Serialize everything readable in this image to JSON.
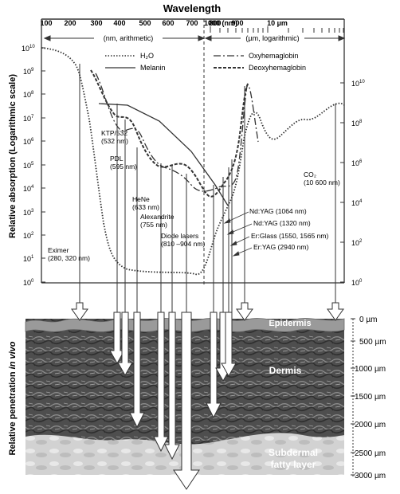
{
  "top_axis": {
    "title": "Wavelength",
    "ticks_nm": [
      "100",
      "200",
      "300",
      "400",
      "500",
      "600",
      "700",
      "800",
      "900",
      "1000 (nm)"
    ],
    "tick_um": "10 µm",
    "range_nm": "(nm, arithmetic)",
    "range_um": "(µm, logarithmic)"
  },
  "left_axis": {
    "title": "Relative absorption (Logarithmic scale)",
    "labels": [
      "10",
      "10",
      "10",
      "10",
      "10",
      "10",
      "10",
      "10",
      "10",
      "10",
      "10"
    ],
    "exponents": [
      "10",
      "9",
      "8",
      "7",
      "6",
      "5",
      "4",
      "3",
      "2",
      "1",
      "0"
    ]
  },
  "right_axis": {
    "bases": [
      "10",
      "10",
      "10",
      "10",
      "10",
      "10"
    ],
    "exponents": [
      "10",
      "8",
      "6",
      "4",
      "2",
      "0"
    ]
  },
  "legend": {
    "water": "H₂O",
    "melanin": "Melanin",
    "oxy": "Oxyhemaglobin",
    "deoxy": "Deoxyhemaglobin"
  },
  "lasers": {
    "excimer": [
      "Eximer",
      "(280, 320 nm)"
    ],
    "ktp": [
      "KTP/532",
      "(532 nm)"
    ],
    "pdl": [
      "PDL",
      "(595 nm)"
    ],
    "hene": [
      "HeNe",
      "(633 nm)"
    ],
    "alex": [
      "Alexandrite",
      "(755 nm)"
    ],
    "diode": [
      "Diode lasers",
      "(810 –904 nm)"
    ],
    "co2": [
      "CO₂",
      "(10 600 nm)"
    ],
    "ndyag1064": "Nd:YAG (1064 nm)",
    "ndyag1320": "Nd:YAG (1320 nm)",
    "erglass": "Er:Glass (1550, 1565 nm)",
    "eryag": "Er:YAG (2940 nm)"
  },
  "tissue": {
    "y_title_a": "Relative penetration ",
    "y_title_b": "in vivo",
    "epidermis": "Epidermis",
    "dermis": "Dermis",
    "fat_line1": "Subdermal",
    "fat_line2": "fatty layer"
  },
  "depth_ticks": [
    "0 µm",
    "500 µm",
    "1000 µm",
    "1500 µm",
    "2000 µm",
    "2500 µm",
    "3000 µm"
  ],
  "colors": {
    "line": "#333333",
    "arrow_fill": "#ffffff",
    "dermis": "#555555",
    "epidermis": "#9a9a9a",
    "fat": "#cfcfcf"
  }
}
